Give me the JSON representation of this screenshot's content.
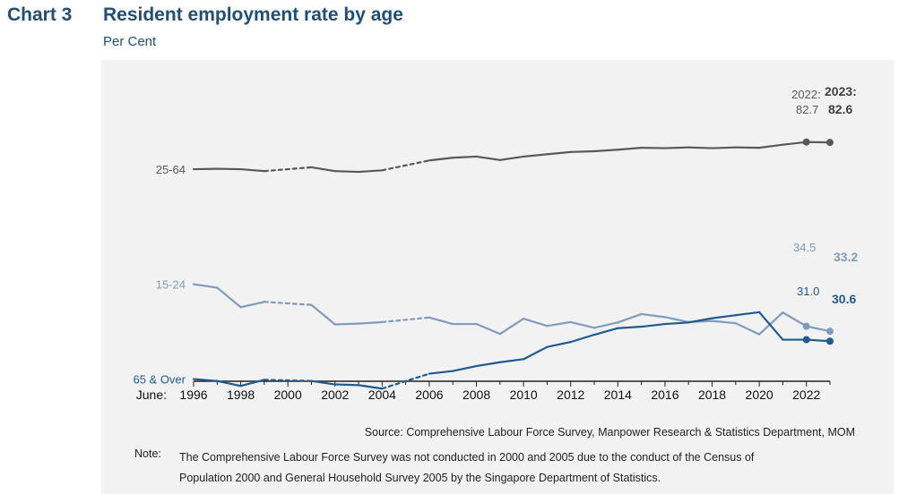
{
  "header": {
    "chart_number": "Chart 3",
    "title": "Resident employment rate by age",
    "unit": "Per Cent"
  },
  "colors": {
    "series_25_64": "#595959",
    "series_15_24": "#7f9cbd",
    "series_65_over": "#1f5a91",
    "axis": "#222222",
    "panel": "#f2f2f2"
  },
  "chart_data": {
    "type": "line",
    "x_axis_prefix": "June:",
    "x_ticks": [
      "1996",
      "1998",
      "2000",
      "2002",
      "2004",
      "2006",
      "2008",
      "2010",
      "2012",
      "2014",
      "2016",
      "2018",
      "2020",
      "2022"
    ],
    "xlim": [
      1996,
      2023
    ],
    "ylim": [
      22,
      92
    ],
    "grid": false,
    "legend": "inline labels at left of lines",
    "gap_years": [
      2000,
      2005
    ],
    "series": [
      {
        "name": "25-64",
        "color": "#595959",
        "x": [
          1996,
          1997,
          1998,
          1999,
          2001,
          2002,
          2003,
          2004,
          2006,
          2007,
          2008,
          2009,
          2010,
          2011,
          2012,
          2013,
          2014,
          2015,
          2016,
          2017,
          2018,
          2019,
          2020,
          2021,
          2022,
          2023
        ],
        "y": [
          75.6,
          75.7,
          75.6,
          75.1,
          76.1,
          75.1,
          74.9,
          75.3,
          77.9,
          78.6,
          78.9,
          78.0,
          78.9,
          79.5,
          80.1,
          80.3,
          80.7,
          81.2,
          81.1,
          81.3,
          81.1,
          81.3,
          81.2,
          82.0,
          82.7,
          82.6
        ]
      },
      {
        "name": "15-24",
        "color": "#7f9cbd",
        "x": [
          1996,
          1997,
          1998,
          1999,
          2001,
          2002,
          2003,
          2004,
          2006,
          2007,
          2008,
          2009,
          2010,
          2011,
          2012,
          2013,
          2014,
          2015,
          2016,
          2017,
          2018,
          2019,
          2020,
          2021,
          2022,
          2023
        ],
        "y": [
          45.5,
          44.6,
          39.5,
          40.9,
          40.1,
          35.0,
          35.2,
          35.6,
          36.8,
          35.1,
          35.1,
          32.5,
          36.5,
          34.6,
          35.6,
          34.1,
          35.5,
          37.7,
          36.9,
          35.6,
          35.9,
          35.3,
          32.4,
          38.1,
          34.5,
          33.2
        ]
      },
      {
        "name": "65 & Over",
        "color": "#1f5a91",
        "x": [
          1996,
          1997,
          1998,
          1999,
          2001,
          2002,
          2003,
          2004,
          2006,
          2007,
          2008,
          2009,
          2010,
          2011,
          2012,
          2013,
          2014,
          2015,
          2016,
          2017,
          2018,
          2019,
          2020,
          2021,
          2022,
          2023
        ],
        "y": [
          20.7,
          20.2,
          18.9,
          20.5,
          20.2,
          19.3,
          19.1,
          18.2,
          22.1,
          22.8,
          24.1,
          25.1,
          25.9,
          29.1,
          30.4,
          32.3,
          34.0,
          34.4,
          35.1,
          35.5,
          36.6,
          37.4,
          38.2,
          31.0,
          31.0,
          30.6
        ]
      }
    ],
    "annotations": {
      "prev_year": "2022:",
      "curr_year": "2023:",
      "s25_64_prev": "82.7",
      "s25_64_curr": "82.6",
      "s15_24_prev": "34.5",
      "s15_24_curr": "33.2",
      "s65_prev": "31.0",
      "s65_curr": "30.6"
    }
  },
  "footer": {
    "source": "Source: Comprehensive Labour Force Survey, Manpower Research & Statistics Department, MOM",
    "note_label": "Note:",
    "note_text": "The Comprehensive Labour Force Survey was not conducted in 2000 and 2005 due to the conduct of the Census of Population 2000 and General Household Survey 2005 by the Singapore Department of Statistics."
  }
}
